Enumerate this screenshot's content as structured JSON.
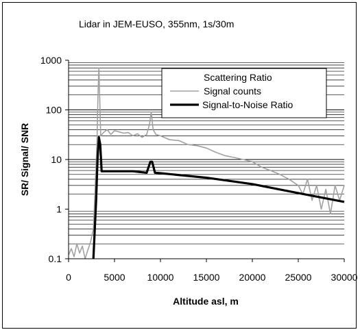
{
  "chart_data": {
    "type": "line",
    "title": "Lidar in JEM-EUSO, 355nm, 1s/30m",
    "xlabel": "Altitude asl, m",
    "ylabel": "SR/ Signal/ SNR",
    "xlim": [
      0,
      30000
    ],
    "ylim": [
      0.1,
      1000
    ],
    "yscale": "log",
    "grid": true,
    "legend_position": "top-right",
    "x_ticks": [
      "0",
      "5000",
      "10000",
      "15000",
      "20000",
      "25000",
      "30000"
    ],
    "y_ticks": [
      "0.1",
      "1",
      "10",
      "100",
      "1000"
    ],
    "series": [
      {
        "name": "Scattering Ratio",
        "color": "#ffffff",
        "x": [
          0,
          30000
        ],
        "y": [
          1,
          1
        ]
      },
      {
        "name": "Signal counts",
        "color": "#a0a0a0",
        "x": [
          0,
          300,
          600,
          900,
          1200,
          1500,
          1800,
          2100,
          2400,
          2700,
          3000,
          3100,
          3200,
          3300,
          3500,
          3800,
          4200,
          4600,
          5000,
          5500,
          6000,
          6500,
          7000,
          7500,
          8000,
          8500,
          8800,
          9000,
          9200,
          9500,
          10000,
          11000,
          12000,
          13000,
          14000,
          15000,
          16000,
          17000,
          18000,
          19000,
          20000,
          21000,
          22000,
          23000,
          24000,
          25000,
          25500,
          26000,
          26500,
          27000,
          27500,
          28000,
          28500,
          29000,
          29500,
          30000
        ],
        "y": [
          0.12,
          0.16,
          0.11,
          0.2,
          0.13,
          0.18,
          0.1,
          0.15,
          0.22,
          0.4,
          8,
          25,
          200,
          700,
          30,
          35,
          40,
          32,
          38,
          36,
          34,
          35,
          30,
          33,
          28,
          32,
          50,
          90,
          40,
          32,
          30,
          25,
          24,
          20,
          19,
          17,
          14,
          12,
          11,
          10,
          9,
          7,
          6,
          5,
          4,
          3,
          2,
          4,
          1.5,
          3,
          1,
          2.5,
          0.8,
          3,
          1.5,
          3
        ]
      },
      {
        "name": "Signal-to-Noise Ratio",
        "color": "#000000",
        "x": [
          2700,
          3000,
          3150,
          3300,
          3450,
          3600,
          5000,
          7000,
          8500,
          8900,
          9100,
          9400,
          10000,
          15000,
          20000,
          25000,
          30000
        ],
        "y": [
          0.1,
          1.5,
          10,
          28,
          20,
          5.8,
          5.8,
          5.8,
          5.4,
          9,
          9,
          5.4,
          5.3,
          4.3,
          3.2,
          2.1,
          1.4
        ]
      }
    ]
  }
}
